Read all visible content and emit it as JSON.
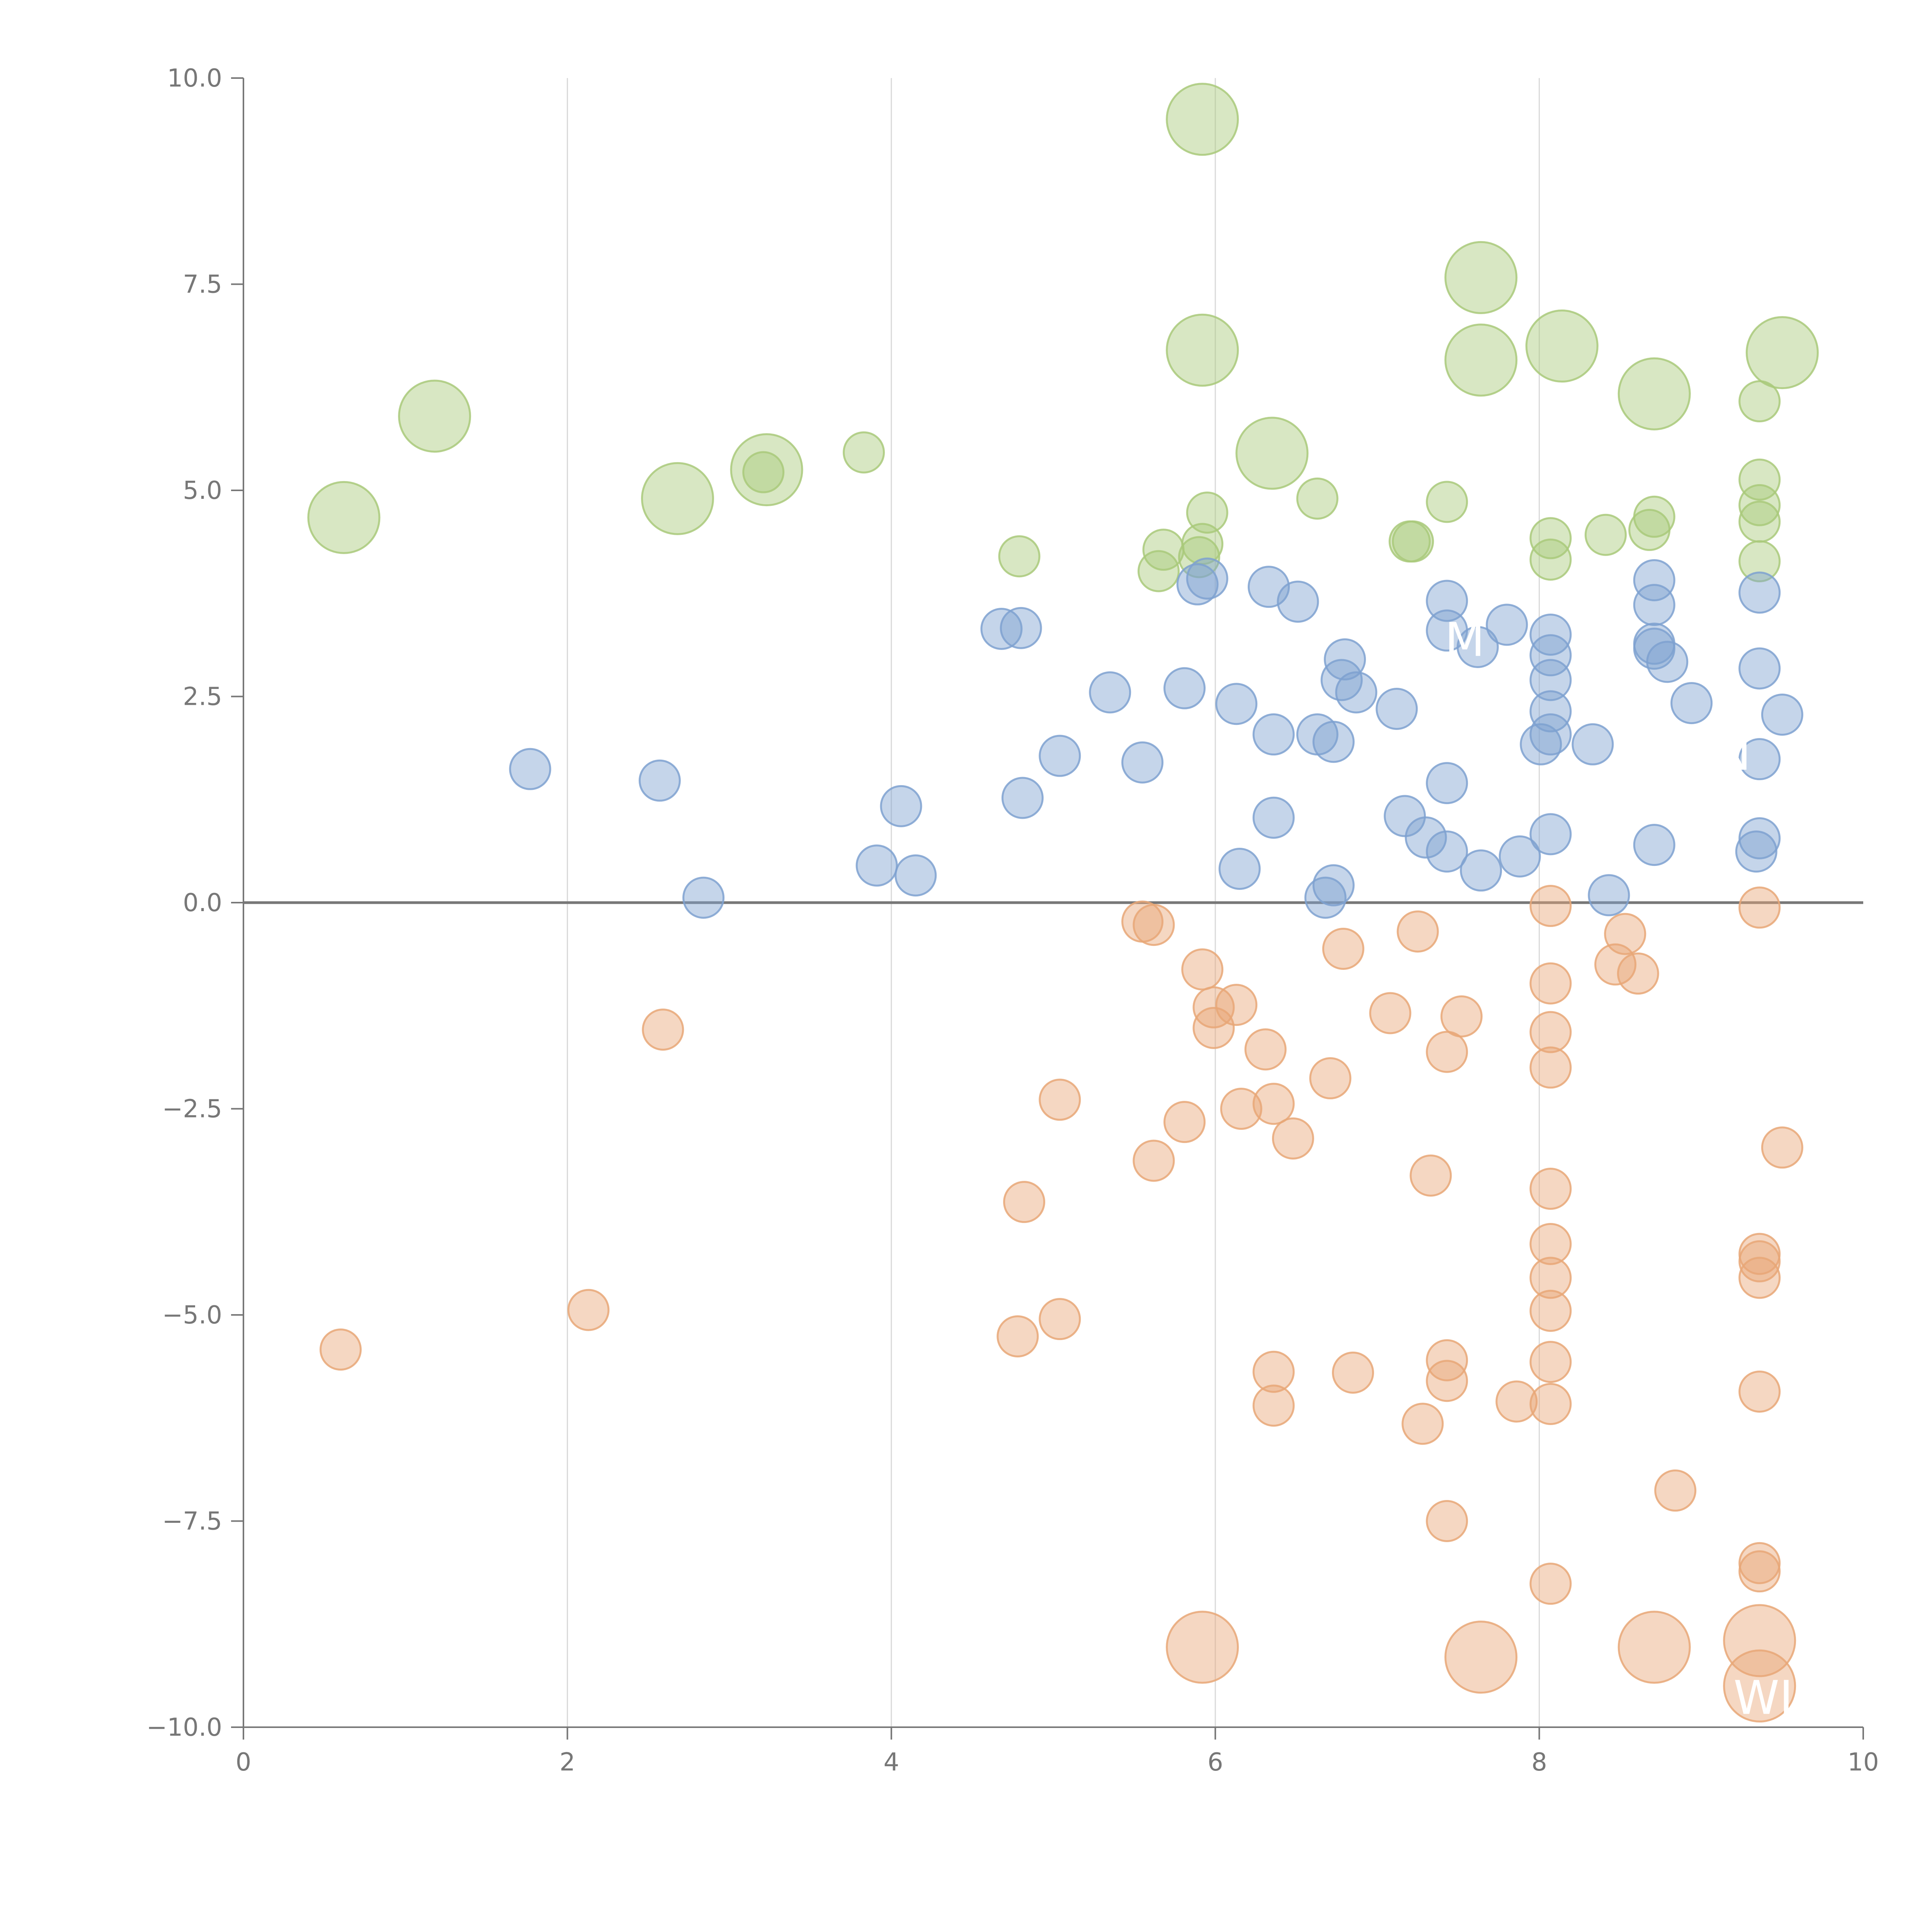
{
  "chart_data": {
    "type": "scatter",
    "title": "",
    "xlabel": "",
    "ylabel": "",
    "xlim": [
      0,
      10
    ],
    "ylim": [
      -10,
      10
    ],
    "grid": "vertical",
    "x_ticks": [
      "0",
      "2",
      "4",
      "6",
      "8",
      "10"
    ],
    "x_tick_values": [
      0,
      2,
      4,
      6,
      8,
      10
    ],
    "y_ticks": [
      "10.0",
      "7.5",
      "5.0",
      "2.5",
      "0.0",
      "−2.5",
      "−5.0",
      "−7.5",
      "−10.0"
    ],
    "y_tick_values": [
      10,
      7.5,
      5,
      2.5,
      0,
      -2.5,
      -5,
      -7.5,
      -10
    ],
    "series": [
      {
        "name": "green",
        "color": "#a9c97a",
        "points": [
          {
            "x": 0.62,
            "y": 4.67,
            "r": 3
          },
          {
            "x": 1.18,
            "y": 5.9,
            "r": 3
          },
          {
            "x": 2.68,
            "y": 4.9,
            "r": 3
          },
          {
            "x": 3.23,
            "y": 5.25,
            "r": 3
          },
          {
            "x": 3.21,
            "y": 5.22,
            "r": 1
          },
          {
            "x": 3.83,
            "y": 5.46,
            "r": 1
          },
          {
            "x": 4.79,
            "y": 4.2,
            "r": 1
          },
          {
            "x": 5.68,
            "y": 4.28,
            "r": 1
          },
          {
            "x": 5.65,
            "y": 4.02,
            "r": 1
          },
          {
            "x": 5.9,
            "y": 4.19,
            "r": 1
          },
          {
            "x": 5.92,
            "y": 4.35,
            "r": 1
          },
          {
            "x": 5.95,
            "y": 4.73,
            "r": 1
          },
          {
            "x": 5.92,
            "y": 9.5,
            "r": 3
          },
          {
            "x": 5.92,
            "y": 6.7,
            "r": 3
          },
          {
            "x": 6.35,
            "y": 5.45,
            "r": 3
          },
          {
            "x": 6.63,
            "y": 4.9,
            "r": 1
          },
          {
            "x": 7.2,
            "y": 4.38,
            "r": 1
          },
          {
            "x": 7.22,
            "y": 4.38,
            "r": 1
          },
          {
            "x": 7.43,
            "y": 4.86,
            "r": 1
          },
          {
            "x": 7.64,
            "y": 7.58,
            "r": 3
          },
          {
            "x": 7.64,
            "y": 6.58,
            "r": 3
          },
          {
            "x": 8.07,
            "y": 4.42,
            "r": 1
          },
          {
            "x": 8.07,
            "y": 4.16,
            "r": 1
          },
          {
            "x": 8.14,
            "y": 6.75,
            "r": 3
          },
          {
            "x": 8.41,
            "y": 4.46,
            "r": 1
          },
          {
            "x": 8.68,
            "y": 4.52,
            "r": 1
          },
          {
            "x": 8.71,
            "y": 4.68,
            "r": 1
          },
          {
            "x": 8.71,
            "y": 6.17,
            "r": 3
          },
          {
            "x": 9.36,
            "y": 6.08,
            "r": 1
          },
          {
            "x": 9.36,
            "y": 5.13,
            "r": 1
          },
          {
            "x": 9.36,
            "y": 4.82,
            "r": 1
          },
          {
            "x": 9.36,
            "y": 4.62,
            "r": 1
          },
          {
            "x": 9.36,
            "y": 4.14,
            "r": 1
          },
          {
            "x": 9.5,
            "y": 6.67,
            "r": 3
          }
        ]
      },
      {
        "name": "blue",
        "color": "#7ea1d0",
        "points": [
          {
            "x": 1.77,
            "y": 1.62,
            "r": 1
          },
          {
            "x": 2.57,
            "y": 1.48,
            "r": 1
          },
          {
            "x": 2.84,
            "y": 0.06,
            "r": 1
          },
          {
            "x": 3.91,
            "y": 0.45,
            "r": 1
          },
          {
            "x": 4.06,
            "y": 1.17,
            "r": 1
          },
          {
            "x": 4.15,
            "y": 0.33,
            "r": 1
          },
          {
            "x": 4.68,
            "y": 3.32,
            "r": 1
          },
          {
            "x": 4.8,
            "y": 3.33,
            "r": 1
          },
          {
            "x": 4.81,
            "y": 1.27,
            "r": 1
          },
          {
            "x": 5.04,
            "y": 1.78,
            "r": 1
          },
          {
            "x": 5.35,
            "y": 2.55,
            "r": 1
          },
          {
            "x": 5.55,
            "y": 1.7,
            "r": 1
          },
          {
            "x": 5.81,
            "y": 2.6,
            "r": 1
          },
          {
            "x": 5.89,
            "y": 3.86,
            "r": 1
          },
          {
            "x": 5.95,
            "y": 3.93,
            "r": 1
          },
          {
            "x": 6.13,
            "y": 2.41,
            "r": 1
          },
          {
            "x": 6.15,
            "y": 0.41,
            "r": 1
          },
          {
            "x": 6.33,
            "y": 3.83,
            "r": 1
          },
          {
            "x": 6.36,
            "y": 2.04,
            "r": 1
          },
          {
            "x": 6.36,
            "y": 1.03,
            "r": 1
          },
          {
            "x": 6.51,
            "y": 3.65,
            "r": 1
          },
          {
            "x": 6.63,
            "y": 2.04,
            "r": 1
          },
          {
            "x": 6.68,
            "y": 0.06,
            "r": 1
          },
          {
            "x": 6.73,
            "y": 0.21,
            "r": 1
          },
          {
            "x": 6.73,
            "y": 1.95,
            "r": 1
          },
          {
            "x": 6.78,
            "y": 2.7,
            "r": 1
          },
          {
            "x": 6.8,
            "y": 2.95,
            "r": 1
          },
          {
            "x": 6.87,
            "y": 2.55,
            "r": 1
          },
          {
            "x": 7.12,
            "y": 2.35,
            "r": 1
          },
          {
            "x": 7.17,
            "y": 1.05,
            "r": 1
          },
          {
            "x": 7.3,
            "y": 0.79,
            "r": 1
          },
          {
            "x": 7.43,
            "y": 3.66,
            "r": 1
          },
          {
            "x": 7.43,
            "y": 3.3,
            "r": 1
          },
          {
            "x": 7.43,
            "y": 1.45,
            "r": 1
          },
          {
            "x": 7.43,
            "y": 0.62,
            "r": 1
          },
          {
            "x": 7.62,
            "y": 3.1,
            "r": 1
          },
          {
            "x": 7.64,
            "y": 0.39,
            "r": 1
          },
          {
            "x": 7.8,
            "y": 3.37,
            "r": 1
          },
          {
            "x": 7.88,
            "y": 0.56,
            "r": 1
          },
          {
            "x": 8.01,
            "y": 1.92,
            "r": 1
          },
          {
            "x": 8.07,
            "y": 3.25,
            "r": 1
          },
          {
            "x": 8.07,
            "y": 3.0,
            "r": 1
          },
          {
            "x": 8.07,
            "y": 2.7,
            "r": 1
          },
          {
            "x": 8.07,
            "y": 2.32,
            "r": 1
          },
          {
            "x": 8.07,
            "y": 2.04,
            "r": 1
          },
          {
            "x": 8.07,
            "y": 0.83,
            "r": 1
          },
          {
            "x": 8.33,
            "y": 1.92,
            "r": 1
          },
          {
            "x": 8.43,
            "y": 0.09,
            "r": 1
          },
          {
            "x": 8.71,
            "y": 3.91,
            "r": 1
          },
          {
            "x": 8.71,
            "y": 3.61,
            "r": 1
          },
          {
            "x": 8.71,
            "y": 3.14,
            "r": 1
          },
          {
            "x": 8.71,
            "y": 3.08,
            "r": 1
          },
          {
            "x": 8.71,
            "y": 0.7,
            "r": 1
          },
          {
            "x": 8.79,
            "y": 2.92,
            "r": 1
          },
          {
            "x": 8.94,
            "y": 2.42,
            "r": 1
          },
          {
            "x": 9.36,
            "y": 3.76,
            "r": 1
          },
          {
            "x": 9.36,
            "y": 2.84,
            "r": 1
          },
          {
            "x": 9.36,
            "y": 1.74,
            "r": 1
          },
          {
            "x": 9.36,
            "y": 0.78,
            "r": 1
          },
          {
            "x": 9.34,
            "y": 0.62,
            "r": 1
          },
          {
            "x": 9.5,
            "y": 2.28,
            "r": 1
          }
        ]
      },
      {
        "name": "orange",
        "color": "#e8a777",
        "points": [
          {
            "x": 0.6,
            "y": -5.42,
            "r": 1
          },
          {
            "x": 2.13,
            "y": -4.94,
            "r": 1
          },
          {
            "x": 2.59,
            "y": -1.54,
            "r": 1
          },
          {
            "x": 4.78,
            "y": -5.26,
            "r": 1
          },
          {
            "x": 4.82,
            "y": -3.63,
            "r": 1
          },
          {
            "x": 5.04,
            "y": -2.39,
            "r": 1
          },
          {
            "x": 5.04,
            "y": -5.05,
            "r": 1
          },
          {
            "x": 5.55,
            "y": -0.23,
            "r": 1
          },
          {
            "x": 5.62,
            "y": -0.27,
            "r": 1
          },
          {
            "x": 5.62,
            "y": -3.13,
            "r": 1
          },
          {
            "x": 5.81,
            "y": -2.66,
            "r": 1
          },
          {
            "x": 5.92,
            "y": -0.81,
            "r": 1
          },
          {
            "x": 5.99,
            "y": -1.27,
            "r": 1
          },
          {
            "x": 5.99,
            "y": -1.52,
            "r": 1
          },
          {
            "x": 6.13,
            "y": -1.24,
            "r": 1
          },
          {
            "x": 6.16,
            "y": -2.5,
            "r": 1
          },
          {
            "x": 6.31,
            "y": -1.78,
            "r": 1
          },
          {
            "x": 6.36,
            "y": -2.44,
            "r": 1
          },
          {
            "x": 6.36,
            "y": -5.69,
            "r": 1
          },
          {
            "x": 6.36,
            "y": -6.1,
            "r": 1
          },
          {
            "x": 6.48,
            "y": -2.86,
            "r": 1
          },
          {
            "x": 6.71,
            "y": -2.13,
            "r": 1
          },
          {
            "x": 6.79,
            "y": -0.56,
            "r": 1
          },
          {
            "x": 6.85,
            "y": -5.7,
            "r": 1
          },
          {
            "x": 7.08,
            "y": -1.34,
            "r": 1
          },
          {
            "x": 7.25,
            "y": -0.35,
            "r": 1
          },
          {
            "x": 7.28,
            "y": -6.32,
            "r": 1
          },
          {
            "x": 7.33,
            "y": -3.31,
            "r": 1
          },
          {
            "x": 7.43,
            "y": -1.81,
            "r": 1
          },
          {
            "x": 7.43,
            "y": -5.55,
            "r": 1
          },
          {
            "x": 7.43,
            "y": -5.8,
            "r": 1
          },
          {
            "x": 7.43,
            "y": -7.5,
            "r": 1
          },
          {
            "x": 7.52,
            "y": -1.38,
            "r": 1
          },
          {
            "x": 7.64,
            "y": -9.15,
            "r": 3
          },
          {
            "x": 7.86,
            "y": -6.05,
            "r": 1
          },
          {
            "x": 8.07,
            "y": -0.04,
            "r": 1
          },
          {
            "x": 8.07,
            "y": -0.98,
            "r": 1
          },
          {
            "x": 8.07,
            "y": -1.57,
            "r": 1
          },
          {
            "x": 8.07,
            "y": -2.0,
            "r": 1
          },
          {
            "x": 8.07,
            "y": -3.47,
            "r": 1
          },
          {
            "x": 8.07,
            "y": -4.14,
            "r": 1
          },
          {
            "x": 8.07,
            "y": -4.55,
            "r": 1
          },
          {
            "x": 8.07,
            "y": -4.95,
            "r": 1
          },
          {
            "x": 8.07,
            "y": -5.57,
            "r": 1
          },
          {
            "x": 8.07,
            "y": -6.08,
            "r": 1
          },
          {
            "x": 8.07,
            "y": -8.26,
            "r": 1
          },
          {
            "x": 8.47,
            "y": -0.75,
            "r": 1
          },
          {
            "x": 8.53,
            "y": -0.38,
            "r": 1
          },
          {
            "x": 8.61,
            "y": -0.86,
            "r": 1
          },
          {
            "x": 8.71,
            "y": -9.03,
            "r": 3
          },
          {
            "x": 8.84,
            "y": -7.13,
            "r": 1
          },
          {
            "x": 9.36,
            "y": -0.06,
            "r": 1
          },
          {
            "x": 9.36,
            "y": -4.26,
            "r": 1
          },
          {
            "x": 9.36,
            "y": -4.35,
            "r": 1
          },
          {
            "x": 9.36,
            "y": -4.55,
            "r": 1
          },
          {
            "x": 9.36,
            "y": -5.93,
            "r": 1
          },
          {
            "x": 9.36,
            "y": -8.01,
            "r": 1
          },
          {
            "x": 9.36,
            "y": -8.11,
            "r": 1
          },
          {
            "x": 9.36,
            "y": -8.95,
            "r": 3
          },
          {
            "x": 9.36,
            "y": -9.5,
            "r": 3
          },
          {
            "x": 9.5,
            "y": -2.97,
            "r": 1
          },
          {
            "x": 5.92,
            "y": -9.03,
            "r": 3
          }
        ]
      }
    ],
    "annotations": [
      {
        "text": "M",
        "x": 7.54,
        "y": 3.18
      },
      {
        "text": "N",
        "x": 9.2,
        "y": 1.8
      },
      {
        "text": "WIN",
        "x": 9.49,
        "y": -9.65
      }
    ]
  }
}
